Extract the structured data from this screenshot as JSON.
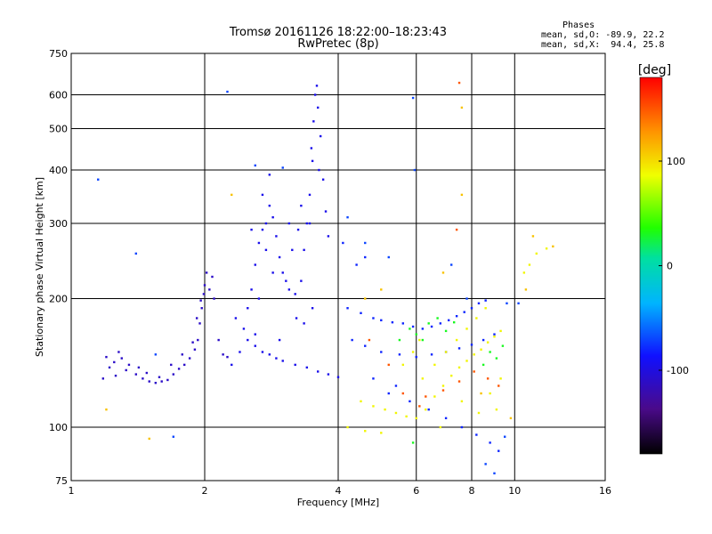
{
  "chart_data": {
    "type": "scatter",
    "title": "Tromsø 20161126 18:22:00–18:23:43",
    "subtitle": "RwPretec (8p)",
    "phases": {
      "heading": "Phases",
      "o_line": "mean, sd,O: -89.9, 22.2",
      "x_line": "mean, sd,X:  94.4, 25.8"
    },
    "xlabel": "Frequency [MHz]",
    "ylabel": "Stationary phase Virtual Height [km]",
    "xscale": "log",
    "yscale": "log",
    "xlim": [
      1,
      16
    ],
    "ylim": [
      75,
      750
    ],
    "x_ticks": [
      1,
      2,
      4,
      6,
      8,
      10,
      16
    ],
    "x_tick_labels": [
      "1",
      "2",
      "4",
      "6",
      "8",
      "10",
      "16"
    ],
    "y_ticks": [
      75,
      100,
      200,
      300,
      400,
      500,
      600,
      750
    ],
    "y_tick_labels": [
      "75",
      "100",
      "200",
      "300",
      "400",
      "500",
      "600",
      "750"
    ],
    "grid": true,
    "colorbar": {
      "label": "[deg]",
      "range": [
        -180,
        180
      ],
      "ticks": [
        100,
        0,
        -100
      ],
      "tick_labels": [
        "100",
        "0",
        "-100"
      ]
    },
    "clusters": [
      {
        "name": "o-low",
        "phase": -110,
        "points": [
          [
            1.18,
            130
          ],
          [
            1.22,
            138
          ],
          [
            1.25,
            142
          ],
          [
            1.3,
            145
          ],
          [
            1.35,
            140
          ],
          [
            1.4,
            133
          ],
          [
            1.45,
            130
          ],
          [
            1.5,
            128
          ],
          [
            1.55,
            127
          ],
          [
            1.6,
            128
          ],
          [
            1.65,
            129
          ],
          [
            1.7,
            133
          ],
          [
            1.75,
            137
          ],
          [
            1.8,
            140
          ],
          [
            1.85,
            145
          ],
          [
            1.9,
            152
          ],
          [
            1.93,
            160
          ],
          [
            1.95,
            175
          ],
          [
            1.97,
            190
          ],
          [
            1.99,
            205
          ],
          [
            2.0,
            215
          ],
          [
            2.05,
            210
          ],
          [
            2.1,
            200
          ],
          [
            2.15,
            160
          ],
          [
            2.2,
            148
          ],
          [
            2.25,
            146
          ],
          [
            1.28,
            150
          ],
          [
            1.33,
            136
          ],
          [
            1.42,
            138
          ],
          [
            1.48,
            134
          ],
          [
            1.58,
            131
          ],
          [
            1.68,
            140
          ],
          [
            1.78,
            148
          ],
          [
            1.88,
            158
          ],
          [
            1.92,
            180
          ],
          [
            1.96,
            198
          ],
          [
            2.02,
            230
          ],
          [
            2.08,
            225
          ],
          [
            1.2,
            146
          ],
          [
            1.26,
            132
          ]
        ]
      },
      {
        "name": "o-mid",
        "phase": -95,
        "points": [
          [
            2.3,
            140
          ],
          [
            2.4,
            150
          ],
          [
            2.45,
            170
          ],
          [
            2.5,
            190
          ],
          [
            2.55,
            210
          ],
          [
            2.6,
            240
          ],
          [
            2.65,
            270
          ],
          [
            2.7,
            290
          ],
          [
            2.75,
            300
          ],
          [
            2.8,
            330
          ],
          [
            2.85,
            310
          ],
          [
            2.9,
            280
          ],
          [
            2.95,
            250
          ],
          [
            3.0,
            230
          ],
          [
            3.05,
            220
          ],
          [
            3.1,
            210
          ],
          [
            3.2,
            205
          ],
          [
            3.3,
            220
          ],
          [
            3.35,
            260
          ],
          [
            3.4,
            300
          ],
          [
            3.45,
            350
          ],
          [
            3.5,
            420
          ],
          [
            3.52,
            520
          ],
          [
            3.55,
            600
          ],
          [
            3.58,
            630
          ],
          [
            3.6,
            560
          ],
          [
            3.65,
            480
          ],
          [
            3.7,
            380
          ],
          [
            3.75,
            320
          ],
          [
            3.8,
            280
          ],
          [
            2.5,
            160
          ],
          [
            2.6,
            155
          ],
          [
            2.7,
            150
          ],
          [
            2.8,
            148
          ],
          [
            2.9,
            145
          ],
          [
            3.0,
            143
          ],
          [
            3.2,
            140
          ],
          [
            3.4,
            138
          ],
          [
            3.6,
            135
          ],
          [
            3.8,
            133
          ],
          [
            4.0,
            131
          ],
          [
            2.35,
            180
          ],
          [
            2.65,
            200
          ],
          [
            2.75,
            260
          ],
          [
            2.85,
            230
          ],
          [
            3.15,
            260
          ],
          [
            3.25,
            290
          ],
          [
            3.3,
            330
          ],
          [
            3.45,
            300
          ],
          [
            3.48,
            450
          ],
          [
            3.62,
            400
          ],
          [
            2.55,
            290
          ],
          [
            2.7,
            350
          ],
          [
            2.8,
            390
          ],
          [
            3.1,
            300
          ],
          [
            3.22,
            180
          ],
          [
            3.5,
            190
          ],
          [
            3.35,
            175
          ],
          [
            2.95,
            160
          ],
          [
            2.6,
            165
          ]
        ]
      },
      {
        "name": "o-upper",
        "phase": -80,
        "points": [
          [
            4.2,
            190
          ],
          [
            4.5,
            185
          ],
          [
            4.8,
            180
          ],
          [
            5.0,
            178
          ],
          [
            5.3,
            176
          ],
          [
            5.6,
            175
          ],
          [
            5.9,
            172
          ],
          [
            6.2,
            170
          ],
          [
            6.5,
            172
          ],
          [
            6.8,
            175
          ],
          [
            7.1,
            178
          ],
          [
            7.4,
            182
          ],
          [
            7.7,
            186
          ],
          [
            8.0,
            190
          ],
          [
            8.3,
            195
          ],
          [
            8.6,
            198
          ],
          [
            4.3,
            160
          ],
          [
            4.6,
            155
          ],
          [
            5.0,
            150
          ],
          [
            5.5,
            148
          ],
          [
            6.0,
            146
          ],
          [
            6.5,
            148
          ],
          [
            7.0,
            150
          ],
          [
            7.5,
            153
          ],
          [
            8.0,
            156
          ],
          [
            8.5,
            160
          ],
          [
            9.0,
            165
          ],
          [
            4.4,
            240
          ],
          [
            4.6,
            250
          ],
          [
            4.1,
            270
          ],
          [
            5.2,
            120
          ],
          [
            5.8,
            115
          ],
          [
            6.4,
            110
          ],
          [
            7.0,
            105
          ],
          [
            7.6,
            100
          ],
          [
            8.2,
            96
          ],
          [
            8.8,
            92
          ],
          [
            9.2,
            88
          ],
          [
            4.8,
            130
          ],
          [
            5.4,
            125
          ]
        ]
      },
      {
        "name": "x-mixed",
        "phase": 90,
        "points": [
          [
            4.5,
            115
          ],
          [
            4.8,
            112
          ],
          [
            5.1,
            110
          ],
          [
            5.4,
            108
          ],
          [
            5.7,
            106
          ],
          [
            6.0,
            105
          ],
          [
            6.3,
            110
          ],
          [
            6.6,
            118
          ],
          [
            6.9,
            125
          ],
          [
            7.2,
            132
          ],
          [
            7.5,
            138
          ],
          [
            7.8,
            143
          ],
          [
            8.1,
            148
          ],
          [
            8.4,
            152
          ],
          [
            8.7,
            158
          ],
          [
            9.0,
            163
          ],
          [
            9.3,
            168
          ],
          [
            6.2,
            130
          ],
          [
            6.6,
            140
          ],
          [
            7.0,
            150
          ],
          [
            7.4,
            160
          ],
          [
            7.8,
            170
          ],
          [
            8.2,
            180
          ],
          [
            8.6,
            190
          ],
          [
            5.6,
            140
          ],
          [
            5.9,
            150
          ],
          [
            6.1,
            160
          ],
          [
            4.2,
            100
          ],
          [
            4.6,
            98
          ],
          [
            5.0,
            97
          ],
          [
            9.1,
            110
          ],
          [
            9.3,
            130
          ],
          [
            8.8,
            120
          ],
          [
            8.3,
            108
          ],
          [
            7.6,
            115
          ],
          [
            6.8,
            100
          ],
          [
            10.5,
            230
          ],
          [
            10.8,
            240
          ],
          [
            11.2,
            255
          ],
          [
            11.8,
            262
          ]
        ]
      },
      {
        "name": "x-green",
        "phase": 30,
        "points": [
          [
            5.8,
            170
          ],
          [
            6.0,
            165
          ],
          [
            6.2,
            160
          ],
          [
            6.4,
            175
          ],
          [
            6.7,
            180
          ],
          [
            7.0,
            168
          ],
          [
            7.3,
            176
          ],
          [
            8.5,
            140
          ],
          [
            8.8,
            150
          ],
          [
            9.1,
            145
          ],
          [
            9.4,
            155
          ],
          [
            5.5,
            160
          ],
          [
            5.9,
            92
          ]
        ]
      },
      {
        "name": "x-red",
        "phase": 150,
        "points": [
          [
            5.6,
            120
          ],
          [
            6.3,
            118
          ],
          [
            6.9,
            122
          ],
          [
            7.5,
            128
          ],
          [
            8.1,
            135
          ],
          [
            8.7,
            130
          ],
          [
            9.2,
            125
          ],
          [
            5.2,
            140
          ],
          [
            7.4,
            290
          ],
          [
            7.5,
            640
          ],
          [
            4.7,
            160
          ],
          [
            6.1,
            112
          ]
        ]
      },
      {
        "name": "o-scatter",
        "phase": -70,
        "points": [
          [
            1.15,
            380
          ],
          [
            1.4,
            255
          ],
          [
            1.55,
            148
          ],
          [
            1.7,
            95
          ],
          [
            2.25,
            610
          ],
          [
            2.6,
            410
          ],
          [
            3.0,
            405
          ],
          [
            4.2,
            310
          ],
          [
            4.6,
            270
          ],
          [
            5.2,
            250
          ],
          [
            5.9,
            590
          ],
          [
            5.95,
            400
          ],
          [
            7.2,
            240
          ],
          [
            7.8,
            200
          ],
          [
            9.6,
            195
          ],
          [
            10.2,
            195
          ],
          [
            9.5,
            95
          ],
          [
            9.0,
            78
          ],
          [
            8.6,
            82
          ]
        ]
      },
      {
        "name": "x-scatter",
        "phase": 110,
        "points": [
          [
            1.2,
            110
          ],
          [
            1.5,
            94
          ],
          [
            2.3,
            350
          ],
          [
            4.6,
            200
          ],
          [
            5.0,
            210
          ],
          [
            6.9,
            230
          ],
          [
            7.6,
            350
          ],
          [
            7.6,
            560
          ],
          [
            10.6,
            210
          ],
          [
            11.0,
            280
          ],
          [
            12.2,
            265
          ],
          [
            9.8,
            105
          ],
          [
            8.4,
            120
          ]
        ]
      }
    ]
  }
}
